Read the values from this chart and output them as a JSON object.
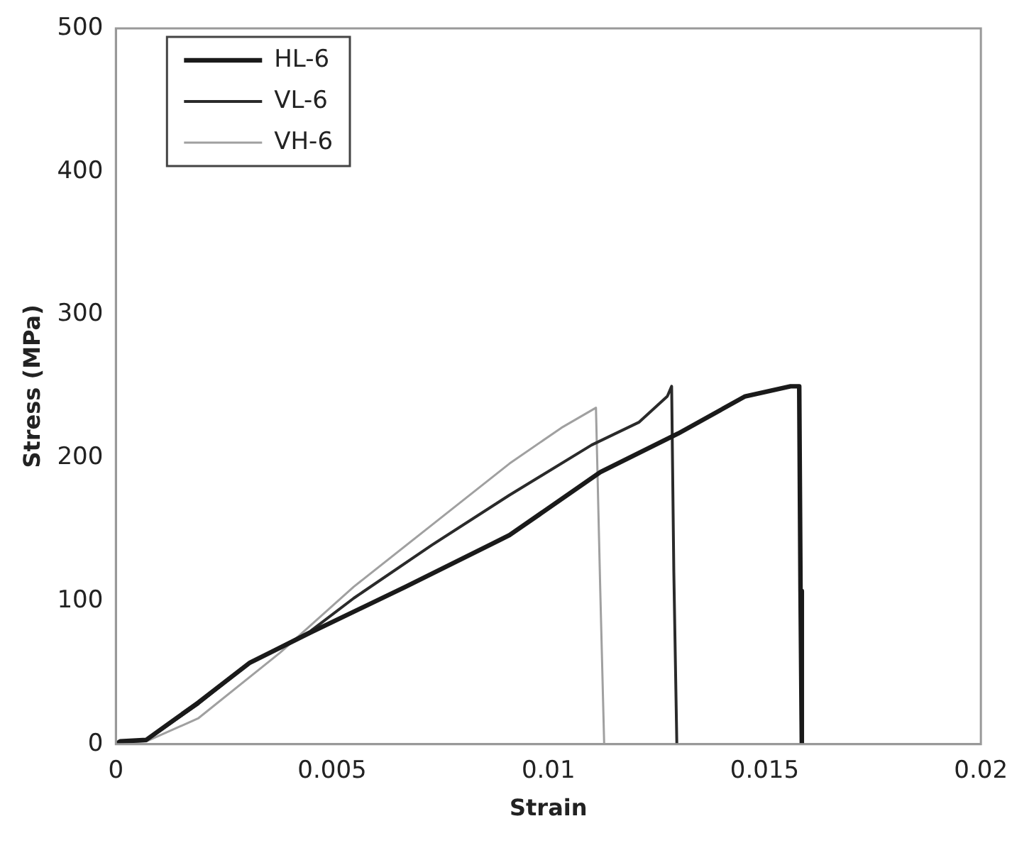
{
  "chart_data": {
    "type": "line",
    "xlabel": "Strain",
    "ylabel": "Stress (MPa)",
    "xlim": [
      0,
      0.02
    ],
    "xticks": [
      0,
      0.005,
      0.01,
      0.015,
      0.02
    ],
    "ylim": [
      0,
      500
    ],
    "yticks": [
      0,
      100,
      200,
      300,
      400,
      500
    ],
    "grid": false,
    "legend": "top left",
    "marker": "none",
    "line_style": "solid",
    "series": [
      {
        "name": "HL-6",
        "color": "#1a1a1a",
        "x": [
          0,
          0.0001,
          0.0007,
          0.0019,
          0.0031,
          0.0045,
          0.0067,
          0.0091,
          0.0112,
          0.013,
          0.01455,
          0.0156,
          0.0158,
          0.01583,
          0.01586
        ],
        "values": [
          0,
          2,
          3,
          29,
          57,
          78,
          110,
          146,
          190,
          217,
          243,
          250,
          250,
          107,
          0
        ]
      },
      {
        "name": "VL-6",
        "color": "#2a2a2a",
        "x": [
          0,
          0.0001,
          0.0007,
          0.0019,
          0.0031,
          0.0045,
          0.0055,
          0.0073,
          0.0091,
          0.011,
          0.0121,
          0.01275,
          0.01285,
          0.0129,
          0.01297
        ],
        "values": [
          0,
          2,
          3,
          28,
          57,
          79,
          102,
          139,
          174,
          209,
          225,
          243,
          250,
          121,
          0
        ]
      },
      {
        "name": "VH-6",
        "color": "#a0a0a0",
        "x": [
          0,
          0.0001,
          0.0007,
          0.0019,
          0.0038,
          0.0055,
          0.0073,
          0.0091,
          0.0103,
          0.0111,
          0.0112,
          0.01129
        ],
        "values": [
          0,
          1,
          2,
          18,
          64,
          110,
          153,
          196,
          221,
          235,
          107,
          0
        ]
      }
    ]
  }
}
